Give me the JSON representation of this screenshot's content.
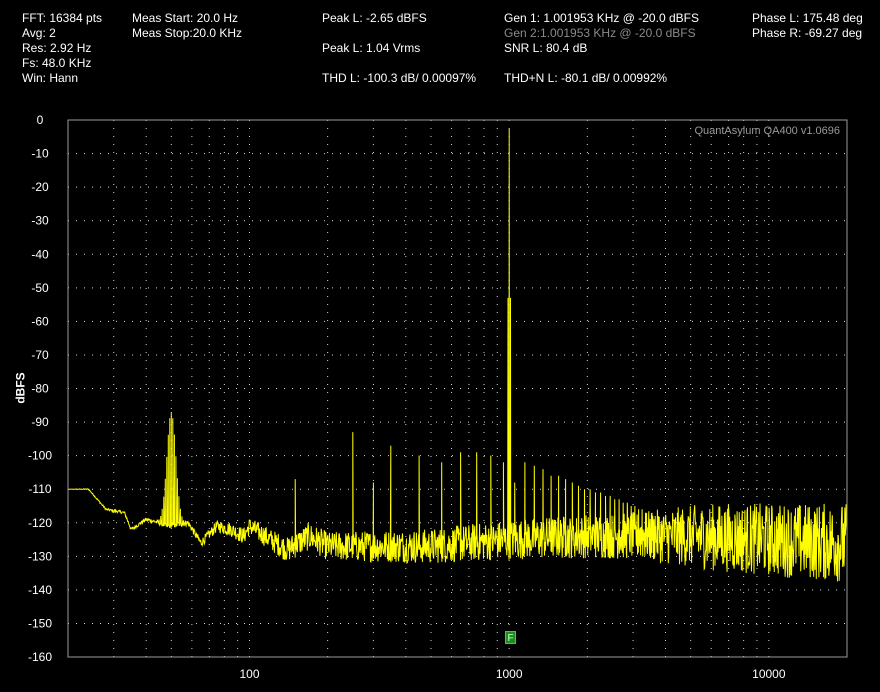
{
  "header": {
    "fft": "FFT: 16384 pts",
    "avg": "Avg: 2",
    "res": "Res: 2.92 Hz",
    "fs": "Fs: 48.0 KHz",
    "win": "Win: Hann",
    "meas_start": "Meas Start: 20.0 Hz",
    "meas_stop": "Meas Stop:20.0 KHz",
    "peak_l_dbfs": "Peak L: -2.65 dBFS",
    "peak_l_vrms": "Peak L: 1.04 Vrms",
    "thd_l": "THD L: -100.3 dB/ 0.00097%",
    "gen1": "Gen 1: 1.001953 KHz @ -20.0  dBFS",
    "gen2": "Gen 2:1.001953 KHz @ -20.0  dBFS",
    "snr_l": "SNR L: 80.4 dB",
    "thdn_l": "THD+N L: -80.1 dB/ 0.00992%",
    "phase_l": "Phase L: 175.48 deg",
    "phase_r": "Phase R: -69.27 deg"
  },
  "watermark": "QuantAsylum QA400 v1.0696",
  "marker_label": "F",
  "colors": {
    "background": "#000000",
    "trace": "#ffff00",
    "grid": "#ffffff",
    "plot_border": "#9a9a9a",
    "marker": "#1a8f1a"
  },
  "chart_data": {
    "type": "line",
    "title": "",
    "xlabel": "",
    "ylabel": "dBFS",
    "xscale": "log",
    "xlim": [
      20,
      20000
    ],
    "ylim": [
      -160,
      0
    ],
    "grid": true,
    "x_ticks": [
      100,
      1000,
      10000
    ],
    "x_tick_labels": [
      "100",
      "1000",
      "10000"
    ],
    "y_ticks": [
      0,
      -10,
      -20,
      -30,
      -40,
      -50,
      -60,
      -70,
      -80,
      -90,
      -100,
      -110,
      -120,
      -130,
      -140,
      -150,
      -160
    ],
    "y_tick_labels": [
      "0",
      "-10",
      "-20",
      "-30",
      "-40",
      "-50",
      "-60",
      "-70",
      "-80",
      "-90",
      "-100",
      "-110",
      "-120",
      "-130",
      "-140",
      "-150",
      "-160"
    ],
    "series": [
      {
        "color": "#ffff00",
        "floor": [
          [
            20,
            -110
          ],
          [
            24,
            -110
          ],
          [
            28,
            -116
          ],
          [
            33,
            -117
          ],
          [
            35,
            -122
          ],
          [
            40,
            -119
          ],
          [
            45,
            -120
          ],
          [
            48,
            -121
          ],
          [
            58,
            -120
          ],
          [
            65,
            -126
          ],
          [
            75,
            -121
          ],
          [
            85,
            -122
          ],
          [
            95,
            -124
          ],
          [
            100,
            -121
          ],
          [
            120,
            -125
          ],
          [
            140,
            -128
          ],
          [
            170,
            -124
          ],
          [
            200,
            -127
          ],
          [
            300,
            -127
          ],
          [
            500,
            -127
          ],
          [
            700,
            -126
          ],
          [
            1000,
            -125
          ],
          [
            2000,
            -124
          ],
          [
            5000,
            -124
          ],
          [
            10000,
            -125
          ],
          [
            20000,
            -126
          ]
        ],
        "floor_noise": [
          [
            20,
            0
          ],
          [
            60,
            1
          ],
          [
            150,
            4
          ],
          [
            400,
            5
          ],
          [
            1000,
            6
          ],
          [
            3000,
            7
          ],
          [
            6000,
            10
          ],
          [
            20000,
            12
          ]
        ],
        "peaks": [
          {
            "x": 50,
            "y": -87
          },
          {
            "x": 150,
            "y": -107
          },
          {
            "x": 250,
            "y": -93
          },
          {
            "x": 300,
            "y": -108
          },
          {
            "x": 350,
            "y": -97
          },
          {
            "x": 450,
            "y": -100
          },
          {
            "x": 550,
            "y": -102
          },
          {
            "x": 650,
            "y": -99
          },
          {
            "x": 750,
            "y": -99
          },
          {
            "x": 850,
            "y": -100
          },
          {
            "x": 950,
            "y": -102
          },
          {
            "x": 1000,
            "y": -2.65
          },
          {
            "x": 1050,
            "y": -108
          },
          {
            "x": 1150,
            "y": -102
          },
          {
            "x": 1250,
            "y": -103
          },
          {
            "x": 1350,
            "y": -104
          },
          {
            "x": 1450,
            "y": -106
          },
          {
            "x": 1550,
            "y": -106
          },
          {
            "x": 1650,
            "y": -107
          },
          {
            "x": 1750,
            "y": -108
          },
          {
            "x": 1850,
            "y": -109
          },
          {
            "x": 1950,
            "y": -110
          },
          {
            "x": 2050,
            "y": -110
          },
          {
            "x": 2150,
            "y": -111
          },
          {
            "x": 2250,
            "y": -111
          },
          {
            "x": 2350,
            "y": -112
          },
          {
            "x": 2450,
            "y": -112
          },
          {
            "x": 2550,
            "y": -113
          },
          {
            "x": 2650,
            "y": -113
          },
          {
            "x": 2750,
            "y": -114
          },
          {
            "x": 2850,
            "y": -114
          },
          {
            "x": 2950,
            "y": -115
          },
          {
            "x": 3050,
            "y": -115
          },
          {
            "x": 3150,
            "y": -116
          },
          {
            "x": 3250,
            "y": -116
          },
          {
            "x": 3350,
            "y": -117
          },
          {
            "x": 3450,
            "y": -117
          },
          {
            "x": 3550,
            "y": -117
          },
          {
            "x": 3650,
            "y": -118
          },
          {
            "x": 3750,
            "y": -118
          }
        ],
        "main_tone_shoulder": [
          {
            "x": 990,
            "y": -53
          },
          {
            "x": 1012,
            "y": -53
          }
        ]
      }
    ]
  }
}
